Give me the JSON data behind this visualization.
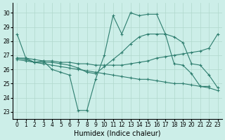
{
  "background_color": "#cceee8",
  "line_color": "#2d7d6e",
  "grid_color": "#b0d8cc",
  "xlabel": "Humidex (Indice chaleur)",
  "ylim": [
    22.5,
    30.7
  ],
  "xlim": [
    -0.5,
    23.5
  ],
  "yticks": [
    23,
    24,
    25,
    26,
    27,
    28,
    29,
    30
  ],
  "xticks": [
    0,
    1,
    2,
    3,
    4,
    5,
    6,
    7,
    8,
    9,
    10,
    11,
    12,
    13,
    14,
    15,
    16,
    17,
    18,
    19,
    20,
    21,
    22,
    23
  ],
  "x_all": [
    0,
    1,
    2,
    3,
    4,
    5,
    6,
    7,
    8,
    9,
    10,
    11,
    12,
    13,
    14,
    15,
    16,
    17,
    18,
    19,
    20,
    21,
    22,
    23
  ],
  "line1": [
    28.5,
    26.8,
    26.5,
    26.6,
    26.0,
    25.8,
    25.6,
    23.1,
    23.1,
    25.3,
    27.0,
    29.8,
    28.5,
    30.0,
    29.8,
    29.9,
    29.9,
    28.5,
    26.4,
    26.3,
    25.7,
    24.8,
    24.8,
    null
  ],
  "line2": [
    26.8,
    26.7,
    26.5,
    26.5,
    26.5,
    26.4,
    26.3,
    26.1,
    25.8,
    25.7,
    26.2,
    26.7,
    27.2,
    27.8,
    28.3,
    28.5,
    28.5,
    28.5,
    28.3,
    27.9,
    26.4,
    26.3,
    25.6,
    24.7
  ],
  "line3": [
    26.8,
    26.8,
    26.7,
    26.6,
    26.6,
    26.5,
    26.5,
    26.4,
    26.4,
    26.3,
    26.3,
    26.3,
    26.3,
    26.4,
    26.5,
    26.6,
    26.8,
    26.9,
    27.0,
    27.1,
    27.2,
    27.3,
    27.5,
    28.5
  ],
  "line4": [
    26.7,
    26.6,
    26.5,
    26.4,
    26.3,
    26.2,
    26.1,
    26.0,
    25.9,
    25.8,
    25.7,
    25.6,
    25.5,
    25.4,
    25.3,
    25.3,
    25.2,
    25.1,
    25.0,
    25.0,
    24.9,
    24.8,
    24.7,
    24.5
  ]
}
